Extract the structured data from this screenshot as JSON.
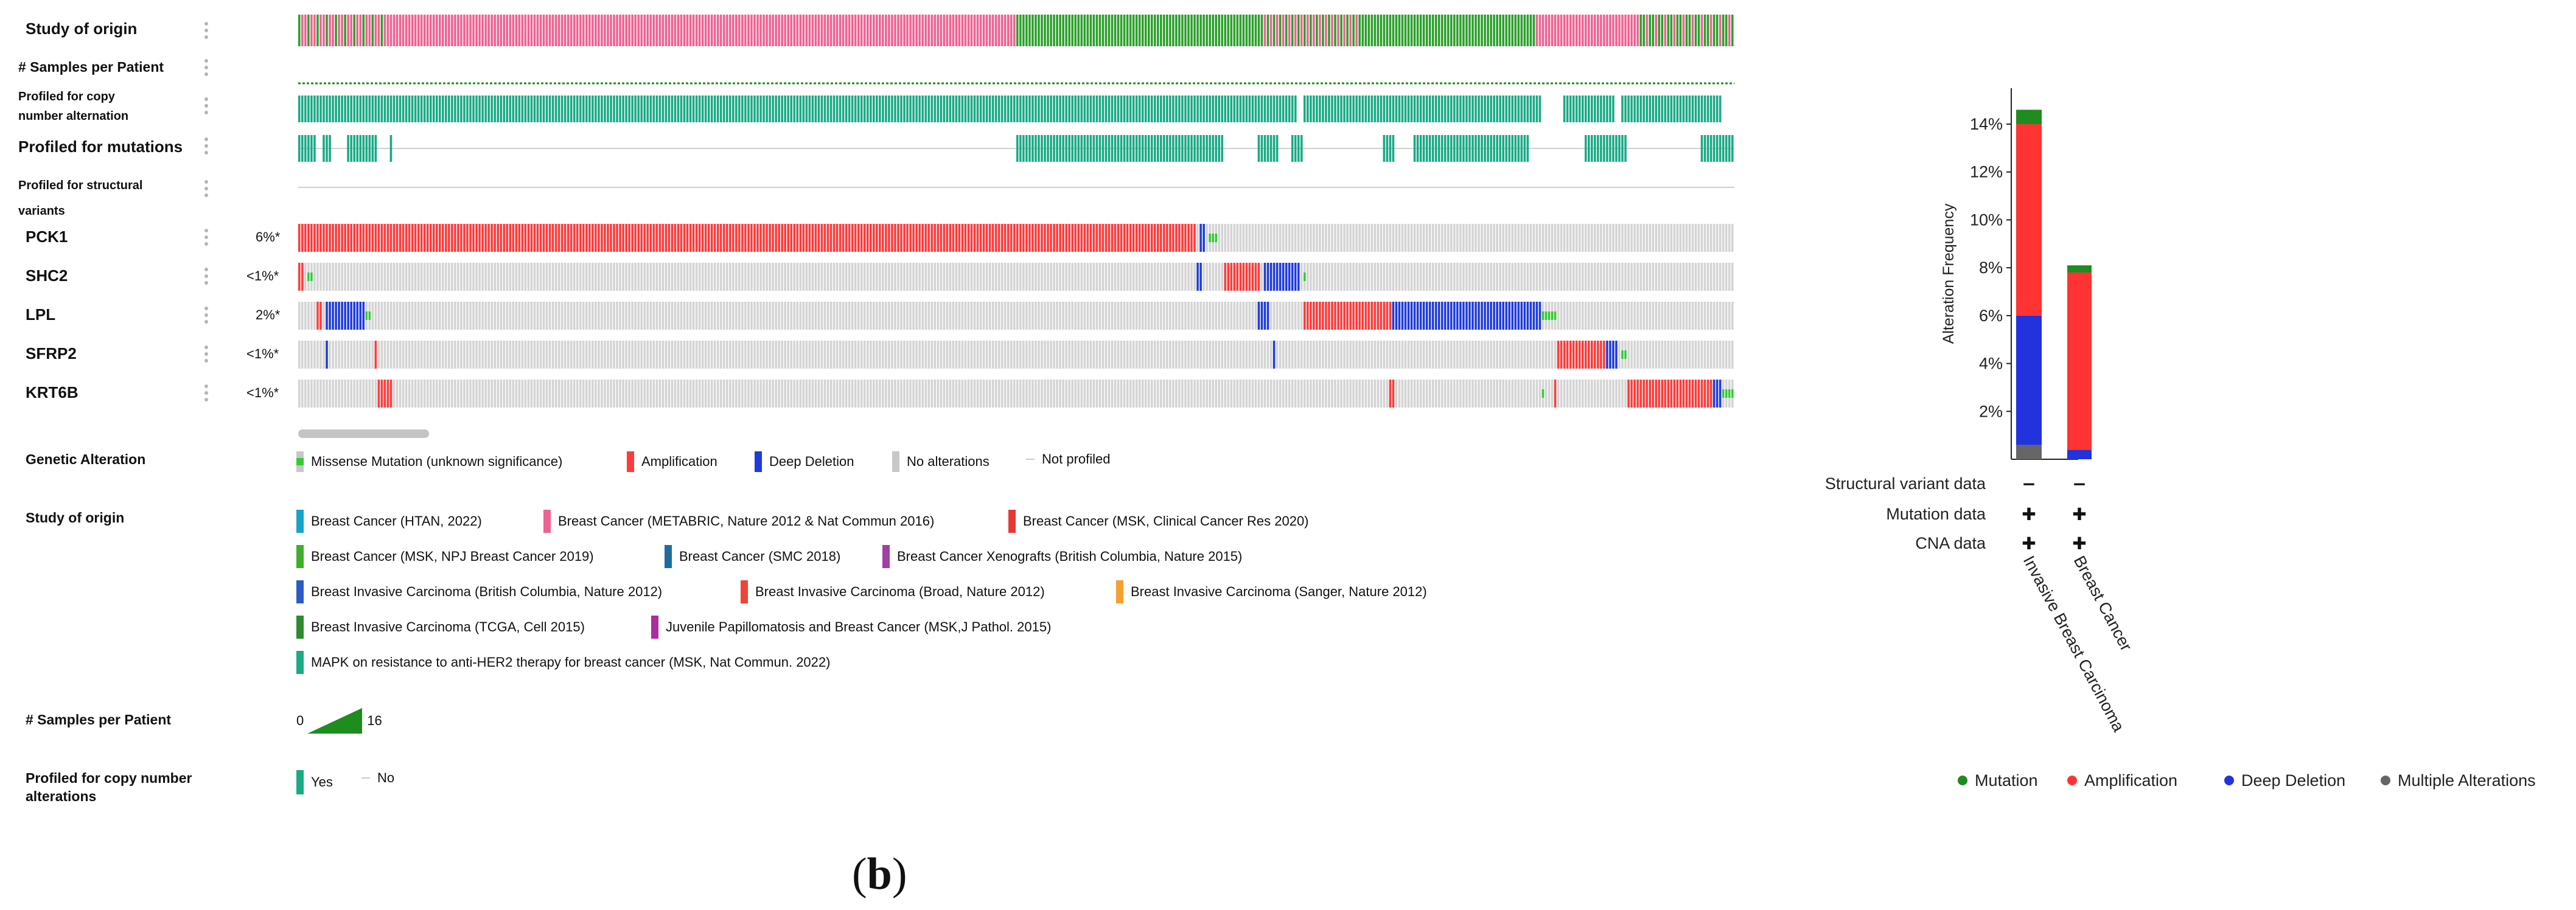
{
  "panel_label": "b",
  "oncoprint": {
    "track_labels": {
      "study_of_origin": "Study of origin",
      "samples_per_patient": "# Samples per Patient",
      "profiled_cna": "Profiled for copy\nnumber alternation",
      "profiled_mutations": "Profiled for mutations",
      "profiled_structural": "Profiled for structural\nvariants"
    },
    "genes": [
      {
        "name": "PCK1",
        "percent": "6%*"
      },
      {
        "name": "SHC2",
        "percent": "<1%*"
      },
      {
        "name": "LPL",
        "percent": "2%*"
      },
      {
        "name": "SFRP2",
        "percent": "<1%*"
      },
      {
        "name": "KRT6B",
        "percent": "<1%*"
      }
    ],
    "colors": {
      "amplification": "#ff3b3b",
      "deep_deletion": "#1f3bdc",
      "missense": "#33cc33",
      "no_alteration": "#d4d4d4",
      "profiled": "#1aaa85",
      "study_pink": "#f06292",
      "study_green": "#2ca02c",
      "study_teal": "#1aaa85"
    },
    "genetic_alteration_legend": {
      "title": "Genetic Alteration",
      "items": [
        {
          "label": "Missense Mutation (unknown significance)",
          "color": "#33cc33"
        },
        {
          "label": "Amplification",
          "color": "#ff3b3b"
        },
        {
          "label": "Deep Deletion",
          "color": "#1f3bdc"
        },
        {
          "label": "No alterations",
          "color": "#c8c8c8"
        },
        {
          "label": "Not profiled",
          "color": "#dddddd"
        }
      ]
    },
    "study_legend": {
      "title": "Study of origin",
      "items": [
        {
          "label": "Breast Cancer (HTAN, 2022)",
          "color": "#17a2c8"
        },
        {
          "label": "Breast Cancer (METABRIC, Nature 2012 & Nat Commun 2016)",
          "color": "#f06292"
        },
        {
          "label": "Breast Cancer (MSK, Clinical Cancer Res 2020)",
          "color": "#e53935"
        },
        {
          "label": "Breast Cancer (MSK, NPJ Breast Cancer 2019)",
          "color": "#3fae2a"
        },
        {
          "label": "Breast Cancer (SMC 2018)",
          "color": "#1e6c9b"
        },
        {
          "label": "Breast Cancer Xenografts (British Columbia, Nature 2015)",
          "color": "#a040a0"
        },
        {
          "label": "Breast Invasive Carcinoma (British Columbia, Nature 2012)",
          "color": "#2a5cc8"
        },
        {
          "label": "Breast Invasive Carcinoma (Broad, Nature 2012)",
          "color": "#f0443a"
        },
        {
          "label": "Breast Invasive Carcinoma (Sanger, Nature 2012)",
          "color": "#f5a030"
        },
        {
          "label": "Breast Invasive Carcinoma (TCGA, Cell 2015)",
          "color": "#2e8b2e"
        },
        {
          "label": "Juvenile Papillomatosis and Breast Cancer (MSK,J Pathol. 2015)",
          "color": "#b02aa0"
        },
        {
          "label": "MAPK on resistance to anti-HER2 therapy for breast cancer (MSK, Nat Commun. 2022)",
          "color": "#1aaa85"
        }
      ]
    },
    "samples_legend": {
      "title": "# Samples per Patient",
      "min": "0",
      "max": "16",
      "color": "#1e8c1e"
    },
    "profiled_legend": {
      "title": "Profiled for copy number\nalterations",
      "yes": "Yes",
      "no": "No",
      "color": "#1aaa85"
    }
  },
  "chart_data": {
    "type": "bar",
    "stacked": true,
    "categories": [
      "Invasive Breast Carcinoma",
      "Breast Cancer"
    ],
    "ylabel": "Alteration Frequency",
    "yticks": [
      "2%",
      "4%",
      "6%",
      "8%",
      "10%",
      "12%",
      "14%"
    ],
    "ylim": [
      0,
      15.5
    ],
    "series": [
      {
        "name": "Multiple Alterations",
        "color": "#666666",
        "values": [
          0.6,
          0.0
        ]
      },
      {
        "name": "Deep Deletion",
        "color": "#2233dd",
        "values": [
          5.4,
          0.4
        ]
      },
      {
        "name": "Amplification",
        "color": "#ff3333",
        "values": [
          8.0,
          7.4
        ]
      },
      {
        "name": "Mutation",
        "color": "#1e8c1e",
        "values": [
          0.6,
          0.3
        ]
      }
    ],
    "legend_position": "bottom",
    "profile_rows": [
      {
        "label": "Structural variant data",
        "values": [
          "−",
          "−"
        ]
      },
      {
        "label": "Mutation data",
        "values": [
          "✚",
          "✚"
        ]
      },
      {
        "label": "CNA data",
        "values": [
          "✚",
          "✚"
        ]
      }
    ],
    "legend": [
      {
        "label": "Mutation",
        "color": "#1e8c1e"
      },
      {
        "label": "Amplification",
        "color": "#ff3333"
      },
      {
        "label": "Deep Deletion",
        "color": "#2233dd"
      },
      {
        "label": "Multiple Alterations",
        "color": "#666666"
      }
    ]
  }
}
